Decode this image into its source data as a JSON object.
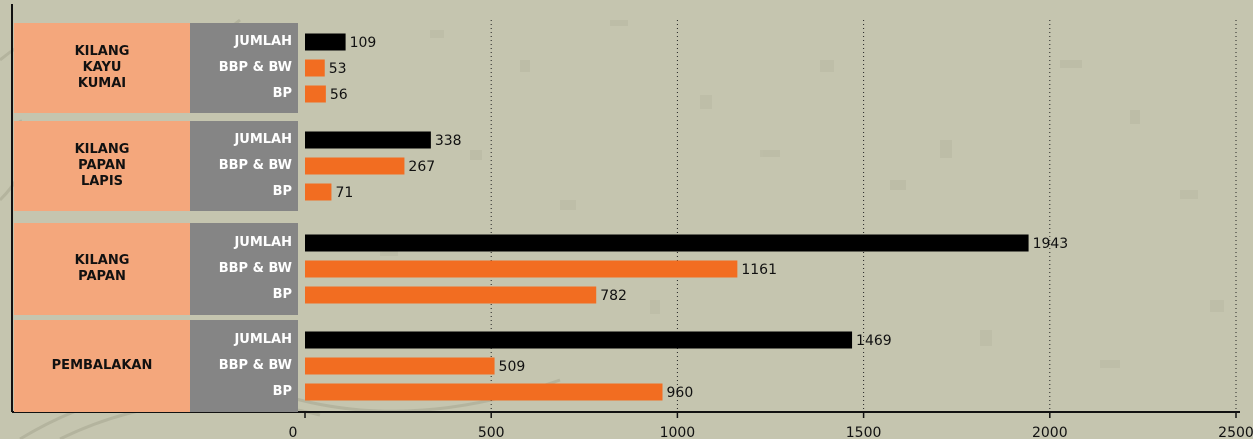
{
  "chart_data": {
    "type": "bar",
    "orientation": "horizontal",
    "groups": [
      {
        "name": "KILANG\nKAYU\nKUMAI",
        "bars": [
          {
            "label": "JUMLAH",
            "value": 109,
            "color": "#000000"
          },
          {
            "label": "BBP & BW",
            "value": 53,
            "color": "#f26d21"
          },
          {
            "label": "BP",
            "value": 56,
            "color": "#f26d21"
          }
        ]
      },
      {
        "name": "KILANG\nPAPAN\nLAPIS",
        "bars": [
          {
            "label": "JUMLAH",
            "value": 338,
            "color": "#000000"
          },
          {
            "label": "BBP & BW",
            "value": 267,
            "color": "#f26d21"
          },
          {
            "label": "BP",
            "value": 71,
            "color": "#f26d21"
          }
        ]
      },
      {
        "name": "KILANG\nPAPAN",
        "bars": [
          {
            "label": "JUMLAH",
            "value": 1943,
            "color": "#000000"
          },
          {
            "label": "BBP & BW",
            "value": 1161,
            "color": "#f26d21"
          },
          {
            "label": "BP",
            "value": 782,
            "color": "#f26d21"
          }
        ]
      },
      {
        "name": "PEMBALAKAN",
        "bars": [
          {
            "label": "JUMLAH",
            "value": 1469,
            "color": "#000000"
          },
          {
            "label": "BBP & BW",
            "value": 509,
            "color": "#f26d21"
          },
          {
            "label": "BP",
            "value": 960,
            "color": "#f26d21"
          }
        ]
      }
    ],
    "xlim": [
      0,
      2500
    ],
    "xticks": [
      "0",
      "500",
      "1000",
      "1500",
      "2000",
      "2500"
    ],
    "grid": true,
    "grid_style": "dotted vertical"
  },
  "colors": {
    "background": "#c5c5af",
    "category_box": "#f4a77c",
    "subcategory_box": "#858585",
    "total_bar": "#000000",
    "component_bar": "#f26d21"
  }
}
